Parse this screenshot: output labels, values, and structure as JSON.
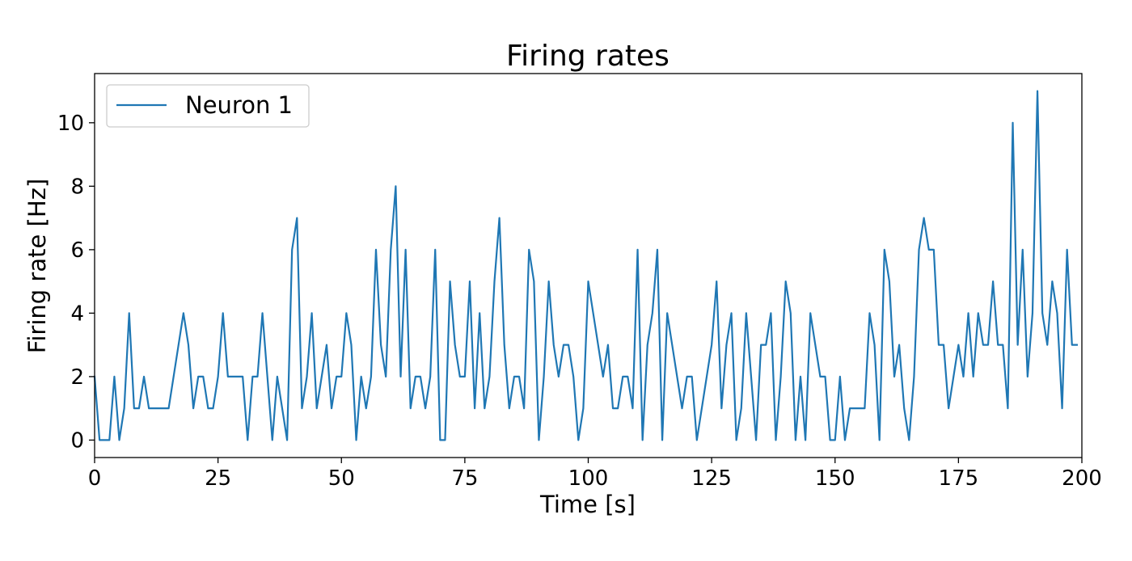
{
  "chart_data": {
    "type": "line",
    "title": "Firing rates",
    "xlabel": "Time [s]",
    "ylabel": "Firing rate [Hz]",
    "xlim": [
      0,
      200
    ],
    "ylim": [
      -0.55,
      11.55
    ],
    "xticks": [
      0,
      25,
      50,
      75,
      100,
      125,
      150,
      175,
      200
    ],
    "yticks": [
      0,
      2,
      4,
      6,
      8,
      10
    ],
    "grid": false,
    "legend": {
      "placement": "top-left"
    },
    "series": [
      {
        "name": "Neuron 1",
        "color": "#1f77b4",
        "x": [
          0,
          1,
          2,
          3,
          4,
          5,
          6,
          7,
          8,
          9,
          10,
          11,
          12,
          13,
          14,
          15,
          16,
          17,
          18,
          19,
          20,
          21,
          22,
          23,
          24,
          25,
          26,
          27,
          28,
          29,
          30,
          31,
          32,
          33,
          34,
          35,
          36,
          37,
          38,
          39,
          40,
          41,
          42,
          43,
          44,
          45,
          46,
          47,
          48,
          49,
          50,
          51,
          52,
          53,
          54,
          55,
          56,
          57,
          58,
          59,
          60,
          61,
          62,
          63,
          64,
          65,
          66,
          67,
          68,
          69,
          70,
          71,
          72,
          73,
          74,
          75,
          76,
          77,
          78,
          79,
          80,
          81,
          82,
          83,
          84,
          85,
          86,
          87,
          88,
          89,
          90,
          91,
          92,
          93,
          94,
          95,
          96,
          97,
          98,
          99,
          100,
          101,
          102,
          103,
          104,
          105,
          106,
          107,
          108,
          109,
          110,
          111,
          112,
          113,
          114,
          115,
          116,
          117,
          118,
          119,
          120,
          121,
          122,
          123,
          124,
          125,
          126,
          127,
          128,
          129,
          130,
          131,
          132,
          133,
          134,
          135,
          136,
          137,
          138,
          139,
          140,
          141,
          142,
          143,
          144,
          145,
          146,
          147,
          148,
          149,
          150,
          151,
          152,
          153,
          154,
          155,
          156,
          157,
          158,
          159,
          160,
          161,
          162,
          163,
          164,
          165,
          166,
          167,
          168,
          169,
          170,
          171,
          172,
          173,
          174,
          175,
          176,
          177,
          178,
          179,
          180,
          181,
          182,
          183,
          184,
          185,
          186,
          187,
          188,
          189,
          190,
          191,
          192,
          193,
          194,
          195,
          196,
          197,
          198,
          199
        ],
        "values": [
          2,
          0,
          0,
          0,
          2,
          0,
          1,
          4,
          1,
          1,
          2,
          1,
          1,
          1,
          1,
          1,
          2,
          3,
          4,
          3,
          1,
          2,
          2,
          1,
          1,
          2,
          4,
          2,
          2,
          2,
          2,
          0,
          2,
          2,
          4,
          2,
          0,
          2,
          1,
          0,
          6,
          7,
          1,
          2,
          4,
          1,
          2,
          3,
          1,
          2,
          2,
          4,
          3,
          0,
          2,
          1,
          2,
          6,
          3,
          2,
          6,
          8,
          2,
          6,
          1,
          2,
          2,
          1,
          2,
          6,
          0,
          0,
          5,
          3,
          2,
          2,
          5,
          1,
          4,
          1,
          2,
          5,
          7,
          3,
          1,
          2,
          2,
          1,
          6,
          5,
          0,
          2,
          5,
          3,
          2,
          3,
          3,
          2,
          0,
          1,
          5,
          4,
          3,
          2,
          3,
          1,
          1,
          2,
          2,
          1,
          6,
          0,
          3,
          4,
          6,
          0,
          4,
          3,
          2,
          1,
          2,
          2,
          0,
          1,
          2,
          3,
          5,
          1,
          3,
          4,
          0,
          1,
          4,
          2,
          0,
          3,
          3,
          4,
          0,
          2,
          5,
          4,
          0,
          2,
          0,
          4,
          3,
          2,
          2,
          0,
          0,
          2,
          0,
          1,
          1,
          1,
          1,
          4,
          3,
          0,
          6,
          5,
          2,
          3,
          1,
          0,
          2,
          6,
          7,
          6,
          6,
          3,
          3,
          1,
          2,
          3,
          2,
          4,
          2,
          4,
          3,
          3,
          5,
          3,
          3,
          1,
          10,
          3,
          6,
          2,
          4,
          11,
          4,
          3,
          5,
          4,
          1,
          6,
          3,
          3
        ]
      }
    ]
  }
}
